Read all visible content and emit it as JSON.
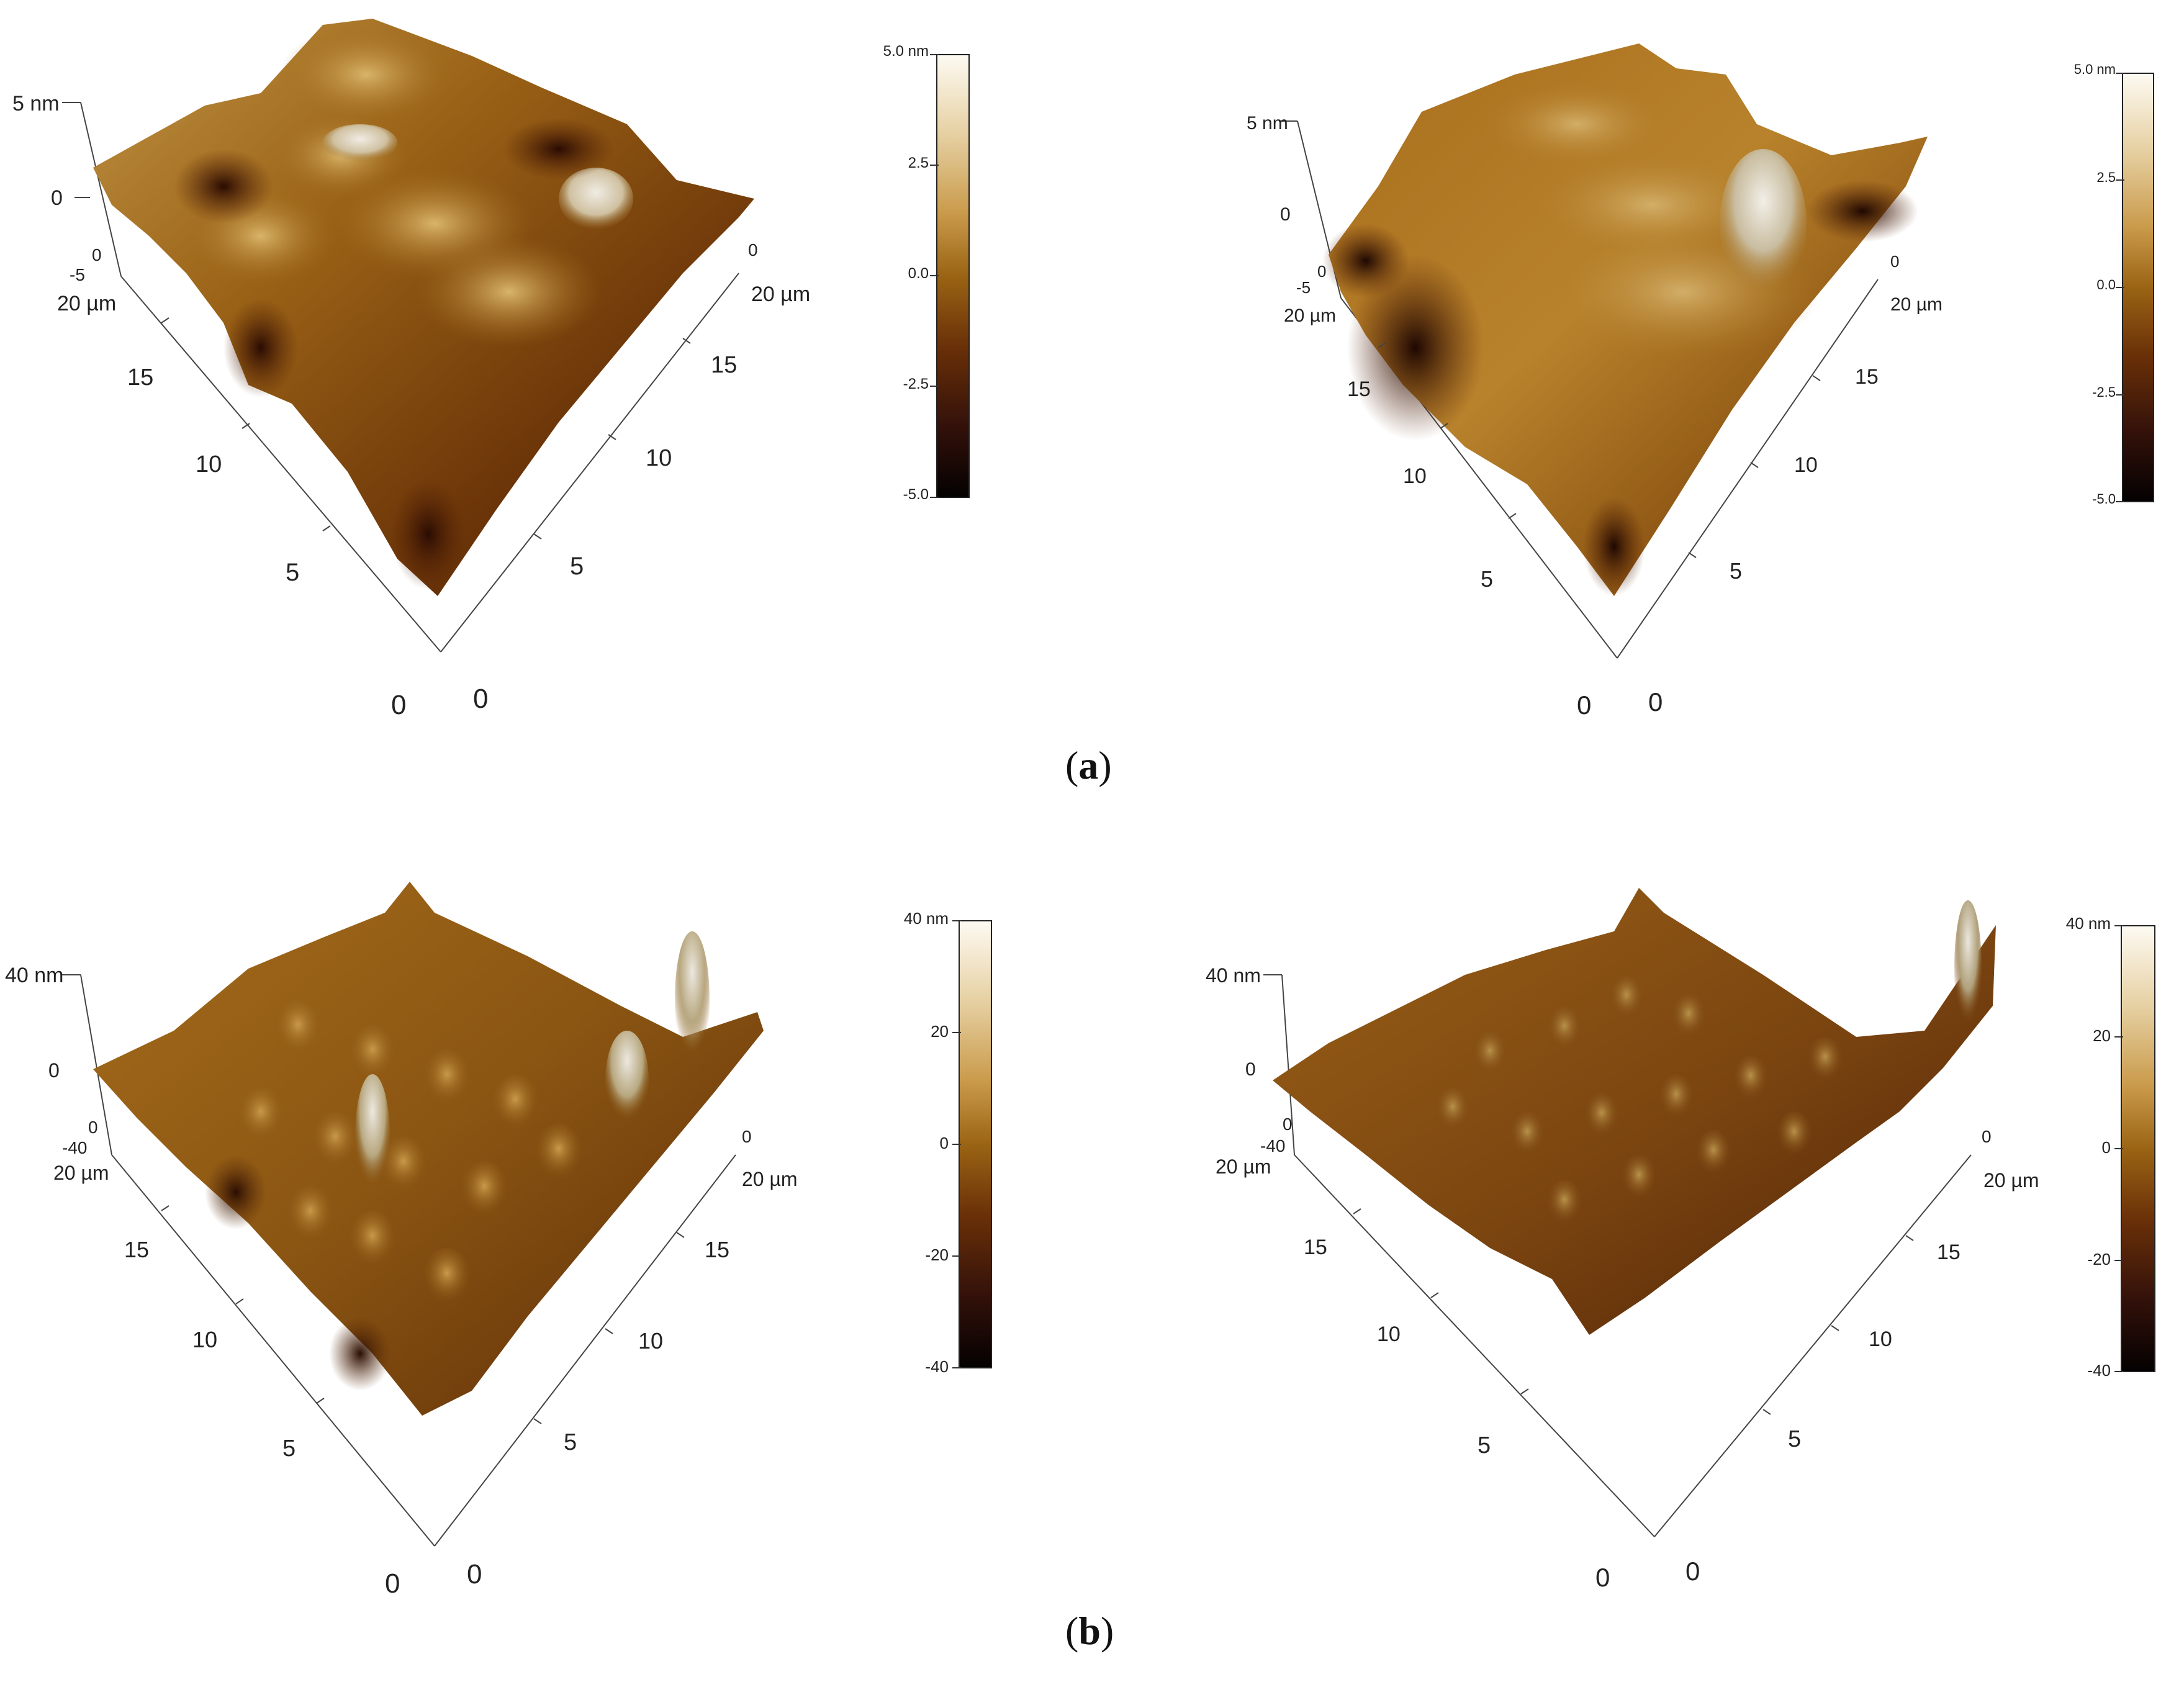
{
  "captions": {
    "a": "a",
    "b": "b"
  },
  "panels": [
    {
      "id": "a-left",
      "z_top": "5 nm",
      "z_mid": "0",
      "z_bot": "-5",
      "y_axis": {
        "end": "20 µm",
        "t15": "15",
        "t10": "10",
        "t5": "5",
        "t0": "0",
        "start": "0"
      },
      "x_axis": {
        "end": "20 µm",
        "t15": "15",
        "t10": "10",
        "t5": "5",
        "t0": "0",
        "start": "0"
      },
      "colorbar": {
        "top": "5.0 nm",
        "upper": "2.5",
        "mid": "0.0",
        "lower": "-2.5",
        "bottom": "-5.0"
      }
    },
    {
      "id": "a-right",
      "z_top": "5 nm",
      "z_mid": "0",
      "z_bot": "-5",
      "y_axis": {
        "end": "20 µm",
        "t15": "15",
        "t10": "10",
        "t5": "5",
        "t0": "0",
        "start": "0"
      },
      "x_axis": {
        "end": "20 µm",
        "t15": "15",
        "t10": "10",
        "t5": "5",
        "t0": "0",
        "start": "0"
      },
      "colorbar": {
        "top": "5.0 nm",
        "upper": "2.5",
        "mid": "0.0",
        "lower": "-2.5",
        "bottom": "-5.0"
      }
    },
    {
      "id": "b-left",
      "z_top": "40 nm",
      "z_mid": "0",
      "z_bot": "-40",
      "y_axis": {
        "end": "20 µm",
        "t15": "15",
        "t10": "10",
        "t5": "5",
        "t0": "0",
        "start": "0"
      },
      "x_axis": {
        "end": "20 µm",
        "t15": "15",
        "t10": "10",
        "t5": "5",
        "t0": "0",
        "start": "0"
      },
      "colorbar": {
        "top": "40 nm",
        "upper": "20",
        "mid": "0",
        "lower": "-20",
        "bottom": "-40"
      }
    },
    {
      "id": "b-right",
      "z_top": "40 nm",
      "z_mid": "0",
      "z_bot": "-40",
      "y_axis": {
        "end": "20 µm",
        "t15": "15",
        "t10": "10",
        "t5": "5",
        "t0": "0",
        "start": "0"
      },
      "x_axis": {
        "end": "20 µm",
        "t15": "15",
        "t10": "10",
        "t5": "5",
        "t0": "0",
        "start": "0"
      },
      "colorbar": {
        "top": "40 nm",
        "upper": "20",
        "mid": "0",
        "lower": "-20",
        "bottom": "-40"
      }
    }
  ],
  "colors": {
    "surface_dark": "#3a1606",
    "surface_mid": "#8a5312",
    "surface_light": "#c9a050",
    "peak_white": "#e8e4dc"
  }
}
